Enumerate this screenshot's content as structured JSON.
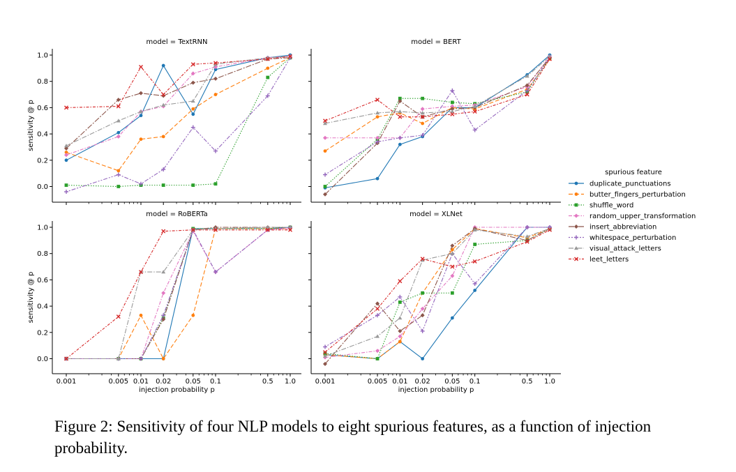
{
  "figure": {
    "caption": "Figure 2: Sensitivity of four NLP models to eight spurious features, as a function of injection probability."
  },
  "chart_data": {
    "type": "line",
    "x": [
      0.001,
      0.005,
      0.01,
      0.02,
      0.05,
      0.1,
      0.5,
      1.0
    ],
    "x_tick_labels": [
      "0.001",
      "0.005",
      "0.01",
      "0.02",
      "0.05",
      "0.1",
      "0.5",
      "1.0"
    ],
    "xscale": "log",
    "xlabel": "injection probability p",
    "ylabel": "sensitivity @ p",
    "y_ticks": [
      0.0,
      0.2,
      0.4,
      0.6,
      0.8,
      1.0
    ],
    "y_tick_labels": [
      "0.0",
      "0.2",
      "0.4",
      "0.6",
      "0.8",
      "1.0"
    ],
    "ylim": [
      -0.1,
      1.05
    ],
    "legend": {
      "title": "spurious feature",
      "placement": "center-right"
    },
    "features": [
      {
        "name": "duplicate_punctuations",
        "color": "#1f77b4",
        "dash": "",
        "marker": "circle"
      },
      {
        "name": "butter_fingers_perturbation",
        "color": "#ff7f0e",
        "dash": "6,3",
        "marker": "circle"
      },
      {
        "name": "shuffle_word",
        "color": "#2ca02c",
        "dash": "1.5,2",
        "marker": "square"
      },
      {
        "name": "random_upper_transformation",
        "color": "#e377c2",
        "dash": "5,2,1.5,2",
        "marker": "diamond"
      },
      {
        "name": "insert_abbreviation",
        "color": "#8c564b",
        "dash": "8,2,2,2",
        "marker": "diamond"
      },
      {
        "name": "whitespace_perturbation",
        "color": "#9467bd",
        "dash": "2,2,2,2,6,2",
        "marker": "plus"
      },
      {
        "name": "visual_attack_letters",
        "color": "#999999",
        "dash": "7,2,1.5,2",
        "marker": "triangle"
      },
      {
        "name": "leet_letters",
        "color": "#d62728",
        "dash": "4,2,1.5,2",
        "marker": "x"
      }
    ],
    "panels": [
      {
        "title": "model = TextRNN",
        "series": [
          {
            "name": "duplicate_punctuations",
            "values": [
              0.2,
              0.41,
              0.54,
              0.92,
              0.55,
              0.89,
              0.98,
              1.0
            ]
          },
          {
            "name": "butter_fingers_perturbation",
            "values": [
              0.26,
              0.12,
              0.36,
              0.38,
              0.59,
              0.7,
              0.9,
              0.98
            ]
          },
          {
            "name": "shuffle_word",
            "values": [
              0.01,
              0.0,
              0.01,
              0.01,
              0.01,
              0.02,
              0.83,
              0.98
            ]
          },
          {
            "name": "random_upper_transformation",
            "values": [
              0.24,
              0.38,
              0.57,
              0.61,
              0.86,
              0.91,
              0.98,
              0.99
            ]
          },
          {
            "name": "insert_abbreviation",
            "values": [
              0.29,
              0.66,
              0.71,
              0.69,
              0.79,
              0.82,
              0.97,
              0.98
            ]
          },
          {
            "name": "whitespace_perturbation",
            "values": [
              -0.04,
              0.09,
              0.02,
              0.13,
              0.45,
              0.27,
              0.69,
              0.98
            ]
          },
          {
            "name": "visual_attack_letters",
            "values": [
              0.31,
              0.5,
              0.57,
              0.62,
              0.65,
              0.93,
              0.98,
              0.99
            ]
          },
          {
            "name": "leet_letters",
            "values": [
              0.6,
              0.61,
              0.91,
              0.7,
              0.93,
              0.94,
              0.97,
              0.99
            ]
          }
        ]
      },
      {
        "title": "model = BERT",
        "series": [
          {
            "name": "duplicate_punctuations",
            "values": [
              -0.01,
              0.06,
              0.32,
              0.38,
              0.6,
              0.6,
              0.85,
              1.0
            ]
          },
          {
            "name": "butter_fingers_perturbation",
            "values": [
              0.27,
              0.53,
              0.56,
              0.48,
              0.6,
              0.59,
              0.74,
              0.97
            ]
          },
          {
            "name": "shuffle_word",
            "values": [
              0.0,
              0.36,
              0.67,
              0.67,
              0.64,
              0.63,
              0.72,
              0.98
            ]
          },
          {
            "name": "random_upper_transformation",
            "values": [
              0.37,
              0.37,
              0.37,
              0.59,
              0.61,
              0.62,
              0.76,
              0.99
            ]
          },
          {
            "name": "insert_abbreviation",
            "values": [
              -0.06,
              0.33,
              0.65,
              0.53,
              0.59,
              0.6,
              0.77,
              0.98
            ]
          },
          {
            "name": "whitespace_perturbation",
            "values": [
              0.09,
              0.34,
              0.37,
              0.39,
              0.73,
              0.43,
              0.73,
              0.98
            ]
          },
          {
            "name": "visual_attack_letters",
            "values": [
              0.48,
              0.56,
              0.57,
              0.56,
              0.57,
              0.61,
              0.84,
              0.99
            ]
          },
          {
            "name": "leet_letters",
            "values": [
              0.5,
              0.66,
              0.53,
              0.53,
              0.55,
              0.57,
              0.7,
              0.97
            ]
          }
        ]
      },
      {
        "title": "model = RoBERTa",
        "series": [
          {
            "name": "duplicate_punctuations",
            "values": [
              0.0,
              0.0,
              0.0,
              0.0,
              0.99,
              0.99,
              0.99,
              1.0
            ]
          },
          {
            "name": "butter_fingers_perturbation",
            "values": [
              0.0,
              0.0,
              0.33,
              0.0,
              0.33,
              0.99,
              0.99,
              0.99
            ]
          },
          {
            "name": "shuffle_word",
            "values": [
              0.0,
              0.0,
              0.0,
              0.31,
              0.99,
              0.99,
              0.99,
              1.0
            ]
          },
          {
            "name": "random_upper_transformation",
            "values": [
              0.0,
              0.0,
              0.0,
              0.5,
              0.97,
              0.66,
              0.98,
              0.99
            ]
          },
          {
            "name": "insert_abbreviation",
            "values": [
              0.0,
              0.0,
              0.0,
              0.3,
              0.98,
              1.0,
              1.0,
              1.0
            ]
          },
          {
            "name": "whitespace_perturbation",
            "values": [
              0.0,
              0.0,
              0.0,
              0.33,
              0.98,
              0.66,
              0.98,
              1.0
            ]
          },
          {
            "name": "visual_attack_letters",
            "values": [
              0.0,
              0.0,
              0.66,
              0.66,
              0.98,
              0.99,
              1.0,
              1.0
            ]
          },
          {
            "name": "leet_letters",
            "values": [
              0.0,
              0.32,
              0.66,
              0.97,
              0.98,
              0.98,
              0.98,
              0.98
            ]
          }
        ]
      },
      {
        "title": "model = XLNet",
        "series": [
          {
            "name": "duplicate_punctuations",
            "values": [
              0.03,
              0.0,
              0.13,
              0.0,
              0.31,
              0.52,
              1.0,
              1.0
            ]
          },
          {
            "name": "butter_fingers_perturbation",
            "values": [
              0.03,
              0.0,
              0.13,
              0.5,
              0.83,
              0.99,
              0.92,
              0.99
            ]
          },
          {
            "name": "shuffle_word",
            "values": [
              0.04,
              0.0,
              0.43,
              0.5,
              0.5,
              0.87,
              0.9,
              0.99
            ]
          },
          {
            "name": "random_upper_transformation",
            "values": [
              0.01,
              0.06,
              0.17,
              0.38,
              0.63,
              1.0,
              1.0,
              1.0
            ]
          },
          {
            "name": "insert_abbreviation",
            "values": [
              -0.04,
              0.42,
              0.21,
              0.33,
              0.86,
              0.99,
              0.9,
              0.99
            ]
          },
          {
            "name": "whitespace_perturbation",
            "values": [
              0.09,
              0.33,
              0.47,
              0.21,
              0.8,
              0.57,
              1.0,
              1.0
            ]
          },
          {
            "name": "visual_attack_letters",
            "values": [
              0.02,
              0.17,
              0.31,
              0.75,
              0.8,
              0.98,
              0.93,
              0.99
            ]
          },
          {
            "name": "leet_letters",
            "values": [
              0.05,
              0.38,
              0.59,
              0.76,
              0.7,
              0.74,
              0.89,
              0.98
            ]
          }
        ]
      }
    ]
  }
}
